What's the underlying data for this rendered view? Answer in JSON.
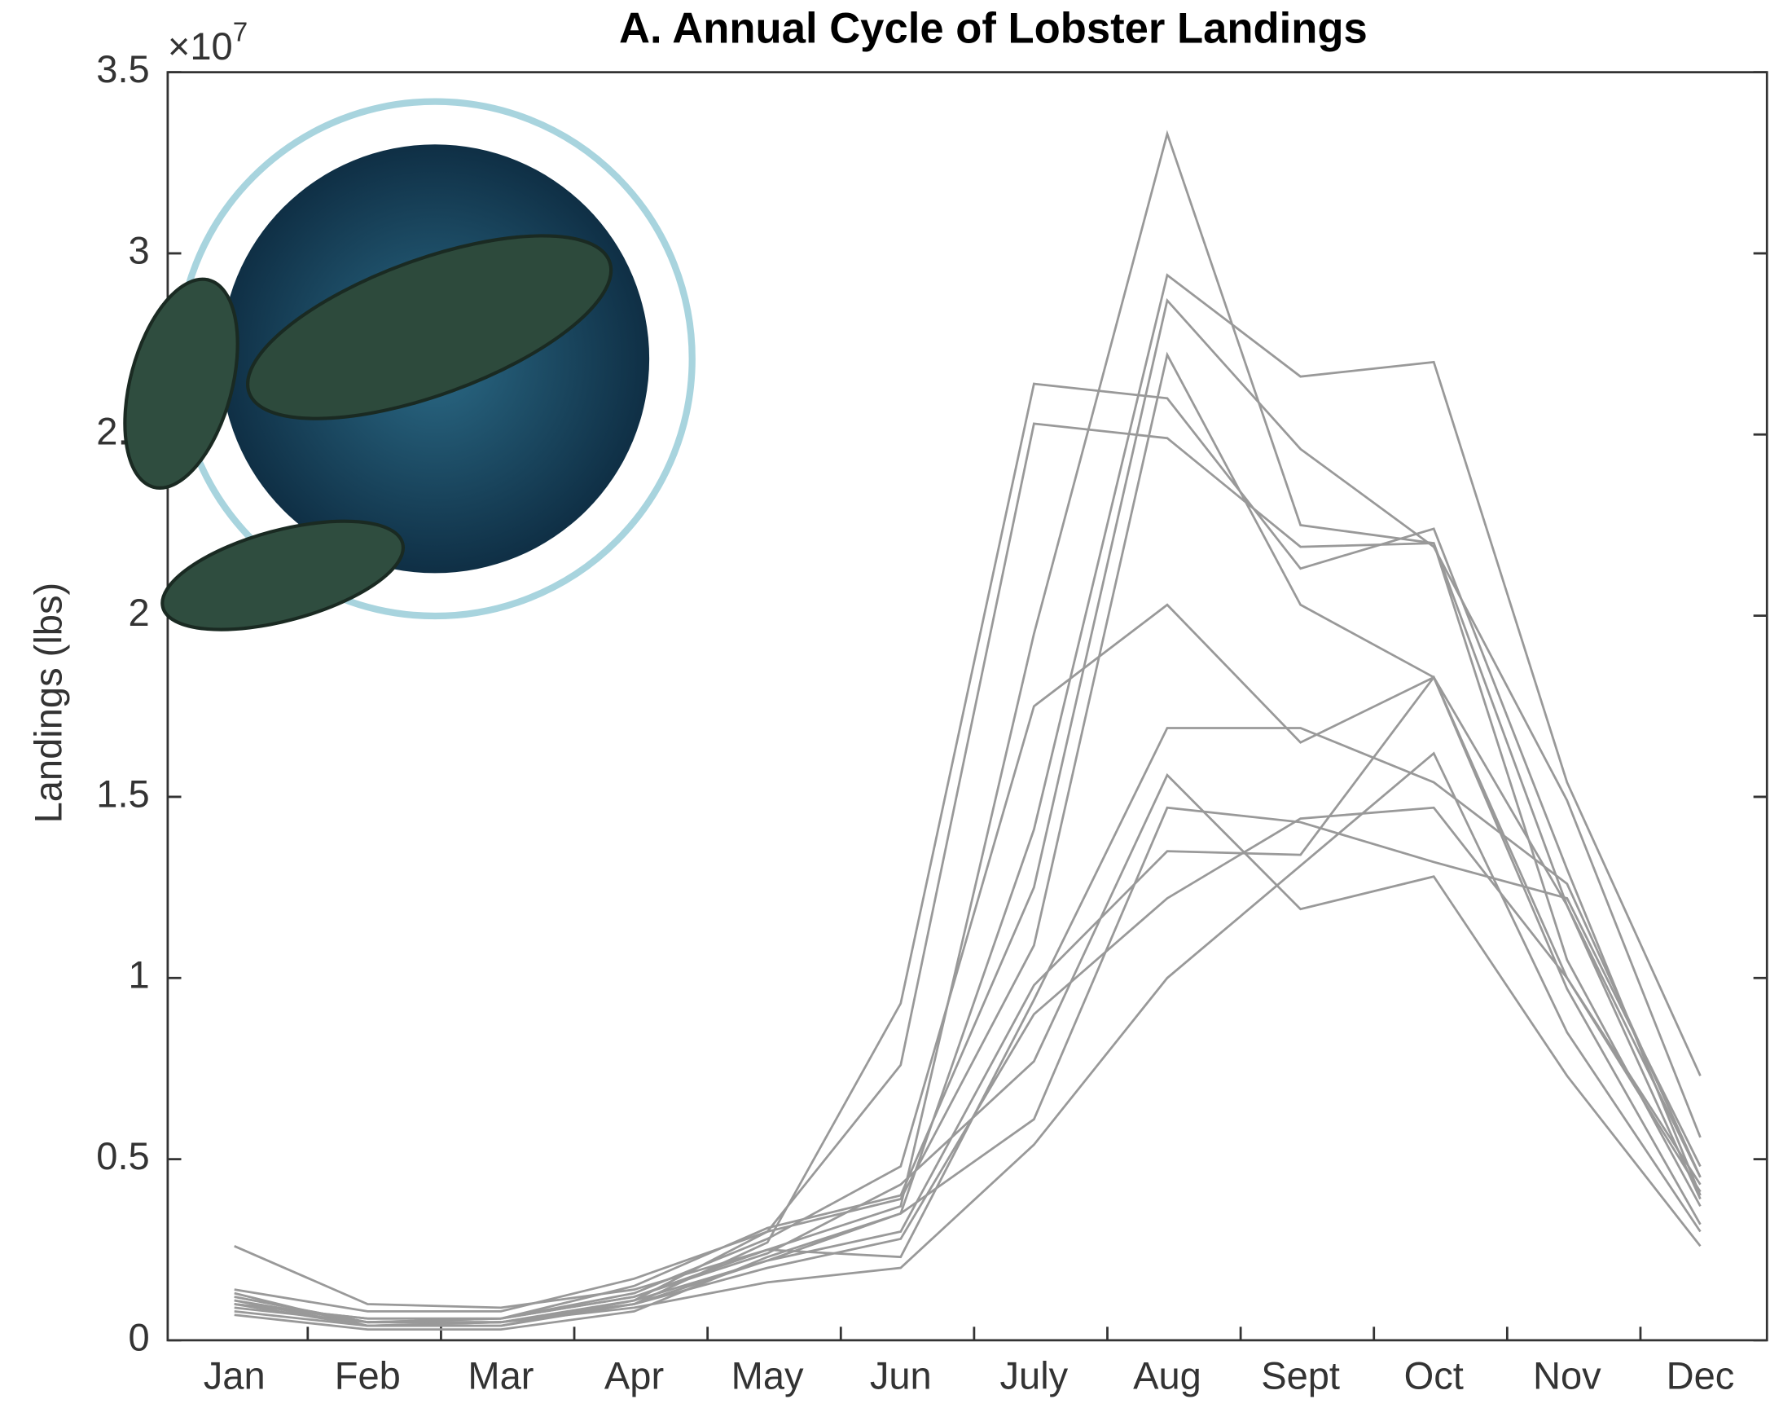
{
  "chart_data": {
    "type": "line",
    "title": "A. Annual Cycle of Lobster Landings",
    "y_label": "Landings (lbs)",
    "y_multiplier": {
      "base": "×10",
      "power": "7"
    },
    "categories": [
      "Jan",
      "Feb",
      "Mar",
      "Apr",
      "May",
      "Jun",
      "July",
      "Aug",
      "Sept",
      "Oct",
      "Nov",
      "Dec"
    ],
    "ylim": [
      0,
      3.5
    ],
    "yticks": [
      0,
      0.5,
      1,
      1.5,
      2,
      2.5,
      3,
      3.5
    ],
    "series": [
      {
        "color": "#999999",
        "values": [
          0.1,
          0.06,
          0.06,
          0.12,
          0.25,
          0.37,
          1.95,
          3.33,
          2.25,
          2.2,
          1.2,
          0.45
        ]
      },
      {
        "color": "#999999",
        "values": [
          0.12,
          0.05,
          0.05,
          0.1,
          0.27,
          0.93,
          2.64,
          2.6,
          2.13,
          2.24,
          1.3,
          0.4
        ]
      },
      {
        "color": "#999999",
        "values": [
          0.13,
          0.04,
          0.05,
          0.11,
          0.3,
          0.76,
          2.53,
          2.49,
          2.19,
          2.2,
          1.05,
          0.37
        ]
      },
      {
        "color": "#999999",
        "values": [
          0.11,
          0.05,
          0.06,
          0.13,
          0.28,
          0.48,
          1.75,
          2.03,
          1.65,
          1.83,
          0.97,
          0.32
        ]
      },
      {
        "color": "#999999",
        "values": [
          0.07,
          0.03,
          0.03,
          0.08,
          0.23,
          0.35,
          1.41,
          2.94,
          2.66,
          2.7,
          1.54,
          0.73
        ]
      },
      {
        "color": "#999999",
        "values": [
          0.1,
          0.06,
          0.06,
          0.15,
          0.31,
          0.4,
          1.25,
          2.87,
          2.46,
          2.19,
          1.49,
          0.56
        ]
      },
      {
        "color": "#999999",
        "values": [
          0.14,
          0.08,
          0.08,
          0.17,
          0.3,
          0.39,
          1.09,
          2.72,
          2.03,
          1.83,
          1.0,
          0.43
        ]
      },
      {
        "color": "#999999",
        "values": [
          0.26,
          0.1,
          0.09,
          0.14,
          0.25,
          0.23,
          0.94,
          1.69,
          1.69,
          1.54,
          1.26,
          0.45
        ]
      },
      {
        "color": "#999999",
        "values": [
          0.12,
          0.05,
          0.06,
          0.12,
          0.24,
          0.43,
          0.77,
          1.56,
          1.19,
          1.28,
          0.73,
          0.26
        ]
      },
      {
        "color": "#999999",
        "values": [
          0.08,
          0.04,
          0.04,
          0.1,
          0.22,
          0.35,
          0.61,
          1.47,
          1.43,
          1.32,
          1.22,
          0.48
        ]
      },
      {
        "color": "#999999",
        "values": [
          0.09,
          0.05,
          0.05,
          0.09,
          0.16,
          0.2,
          0.54,
          1.0,
          1.31,
          1.62,
          0.85,
          0.3
        ]
      },
      {
        "color": "#999999",
        "values": [
          0.11,
          0.04,
          0.05,
          0.1,
          0.2,
          0.28,
          0.9,
          1.22,
          1.44,
          1.47,
          1.0,
          0.41
        ]
      },
      {
        "color": "#999999",
        "values": [
          0.1,
          0.04,
          0.04,
          0.11,
          0.22,
          0.3,
          0.98,
          1.35,
          1.34,
          1.83,
          1.2,
          0.39
        ]
      }
    ]
  }
}
